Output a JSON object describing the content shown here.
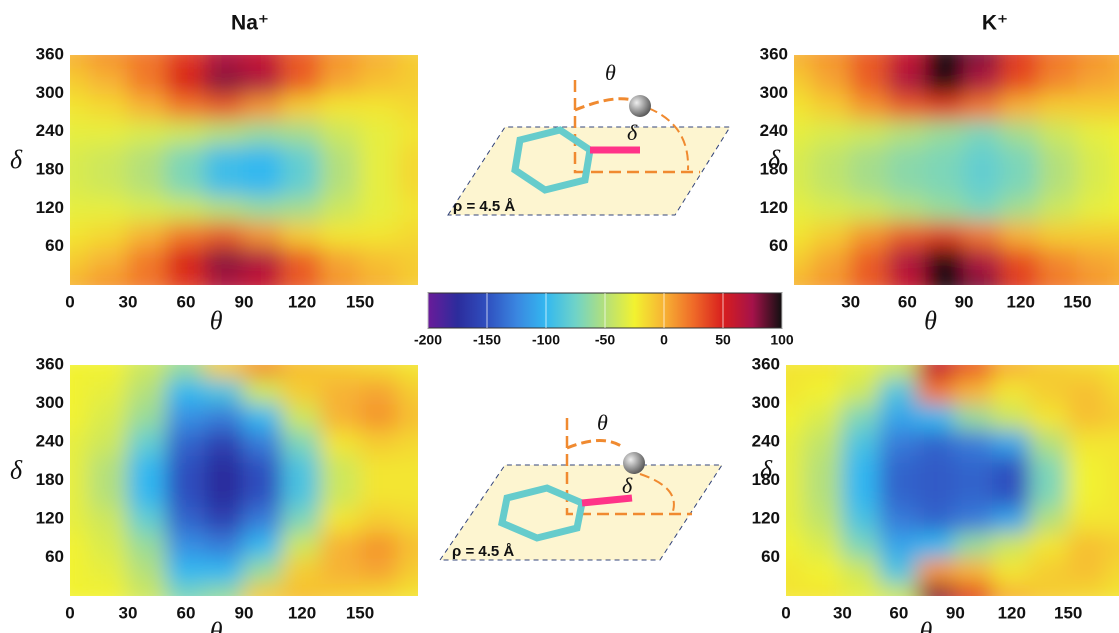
{
  "chart_data": [
    {
      "type": "heatmap",
      "title": "Na⁺",
      "xlabel": "θ",
      "ylabel": "δ",
      "x": [
        0,
        20,
        40,
        60,
        80,
        100,
        120,
        140,
        160,
        180
      ],
      "y": [
        0,
        40,
        80,
        120,
        160,
        200,
        240,
        280,
        320,
        360
      ],
      "z": [
        [
          0,
          10,
          20,
          40,
          70,
          60,
          30,
          10,
          0,
          -10
        ],
        [
          -10,
          0,
          20,
          50,
          80,
          70,
          30,
          5,
          -5,
          -10
        ],
        [
          -20,
          -15,
          0,
          20,
          30,
          10,
          -10,
          -20,
          -20,
          -15
        ],
        [
          -30,
          -30,
          -35,
          -40,
          -50,
          -60,
          -55,
          -40,
          -30,
          -20
        ],
        [
          -35,
          -40,
          -50,
          -70,
          -95,
          -100,
          -80,
          -50,
          -30,
          -15
        ],
        [
          -35,
          -40,
          -50,
          -70,
          -95,
          -100,
          -80,
          -50,
          -30,
          -15
        ],
        [
          -30,
          -30,
          -35,
          -40,
          -50,
          -60,
          -55,
          -40,
          -30,
          -20
        ],
        [
          -20,
          -15,
          0,
          20,
          30,
          10,
          -10,
          -20,
          -20,
          -15
        ],
        [
          -10,
          0,
          20,
          50,
          80,
          70,
          30,
          5,
          -5,
          -10
        ],
        [
          0,
          10,
          20,
          40,
          70,
          60,
          30,
          10,
          0,
          -10
        ]
      ],
      "xlim": [
        0,
        180
      ],
      "ylim": [
        0,
        360
      ],
      "xticks": [
        0,
        30,
        60,
        90,
        120,
        150
      ],
      "yticks": [
        60,
        120,
        180,
        240,
        300,
        360
      ]
    },
    {
      "type": "heatmap",
      "title": "K⁺",
      "xlabel": "θ",
      "ylabel": "δ",
      "x": [
        0,
        20,
        40,
        60,
        80,
        100,
        120,
        140,
        160,
        180
      ],
      "y": [
        0,
        40,
        80,
        120,
        160,
        200,
        240,
        280,
        320,
        360
      ],
      "z": [
        [
          0,
          10,
          30,
          60,
          100,
          80,
          40,
          20,
          10,
          0
        ],
        [
          -10,
          5,
          30,
          70,
          100,
          70,
          35,
          15,
          5,
          0
        ],
        [
          -20,
          -10,
          10,
          30,
          40,
          20,
          0,
          -10,
          -10,
          -10
        ],
        [
          -30,
          -35,
          -40,
          -50,
          -60,
          -70,
          -55,
          -40,
          -30,
          -25
        ],
        [
          -35,
          -45,
          -55,
          -65,
          -70,
          -80,
          -70,
          -50,
          -35,
          -25
        ],
        [
          -35,
          -45,
          -55,
          -65,
          -70,
          -80,
          -70,
          -50,
          -35,
          -25
        ],
        [
          -30,
          -35,
          -40,
          -50,
          -60,
          -70,
          -55,
          -40,
          -30,
          -25
        ],
        [
          -20,
          -10,
          10,
          30,
          40,
          20,
          0,
          -10,
          -10,
          -10
        ],
        [
          -10,
          5,
          30,
          70,
          100,
          70,
          35,
          15,
          5,
          0
        ],
        [
          0,
          10,
          30,
          60,
          100,
          80,
          40,
          20,
          10,
          0
        ]
      ],
      "xlim": [
        0,
        172
      ],
      "ylim": [
        0,
        360
      ],
      "xticks": [
        30,
        60,
        90,
        120,
        150
      ],
      "yticks": [
        60,
        120,
        180,
        240,
        300,
        360
      ]
    },
    {
      "type": "heatmap",
      "xlabel": "θ",
      "ylabel": "δ",
      "x": [
        0,
        20,
        40,
        60,
        80,
        100,
        120,
        140,
        160,
        180
      ],
      "y": [
        0,
        40,
        80,
        120,
        160,
        200,
        240,
        280,
        320,
        360
      ],
      "z": [
        [
          -25,
          -25,
          -40,
          -70,
          -60,
          -10,
          -5,
          -10,
          -15,
          -20
        ],
        [
          -25,
          -30,
          -50,
          -100,
          -100,
          -60,
          -10,
          0,
          5,
          -10
        ],
        [
          -25,
          -35,
          -60,
          -120,
          -130,
          -100,
          -40,
          0,
          10,
          -5
        ],
        [
          -30,
          -40,
          -80,
          -140,
          -160,
          -130,
          -70,
          -20,
          -10,
          -15
        ],
        [
          -30,
          -50,
          -100,
          -150,
          -175,
          -150,
          -90,
          -40,
          -20,
          -20
        ],
        [
          -30,
          -50,
          -100,
          -150,
          -175,
          -150,
          -90,
          -40,
          -20,
          -20
        ],
        [
          -30,
          -40,
          -80,
          -140,
          -160,
          -130,
          -70,
          -20,
          -10,
          -15
        ],
        [
          -25,
          -35,
          -60,
          -120,
          -130,
          -100,
          -40,
          0,
          10,
          -5
        ],
        [
          -25,
          -30,
          -50,
          -100,
          -90,
          -40,
          -10,
          0,
          5,
          -10
        ],
        [
          -25,
          -25,
          -40,
          -60,
          -10,
          10,
          -5,
          -10,
          -15,
          -20
        ]
      ],
      "xlim": [
        0,
        180
      ],
      "ylim": [
        0,
        360
      ],
      "xticks": [
        0,
        30,
        60,
        90,
        120,
        150
      ],
      "yticks": [
        60,
        120,
        180,
        240,
        300,
        360
      ]
    },
    {
      "type": "heatmap",
      "xlabel": "θ",
      "ylabel": "δ",
      "x": [
        0,
        20,
        40,
        60,
        80,
        100,
        120,
        140,
        160,
        180
      ],
      "y": [
        0,
        40,
        80,
        120,
        160,
        200,
        240,
        280,
        320,
        360
      ],
      "z": [
        [
          -20,
          -20,
          -30,
          -40,
          80,
          40,
          0,
          -10,
          -15,
          -20
        ],
        [
          -20,
          -25,
          -40,
          -90,
          10,
          0,
          -20,
          -10,
          -5,
          -15
        ],
        [
          -25,
          -35,
          -70,
          -110,
          -100,
          -60,
          -40,
          -20,
          -5,
          -10
        ],
        [
          -30,
          -45,
          -90,
          -130,
          -140,
          -130,
          -110,
          -50,
          -20,
          -20
        ],
        [
          -30,
          -50,
          -100,
          -140,
          -145,
          -140,
          -150,
          -70,
          -25,
          -20
        ],
        [
          -30,
          -50,
          -100,
          -140,
          -145,
          -140,
          -150,
          -70,
          -25,
          -20
        ],
        [
          -30,
          -45,
          -90,
          -130,
          -140,
          -130,
          -110,
          -50,
          -20,
          -20
        ],
        [
          -25,
          -35,
          -70,
          -110,
          -100,
          -60,
          -40,
          -20,
          -5,
          -10
        ],
        [
          -20,
          -25,
          -40,
          -90,
          20,
          0,
          -20,
          -10,
          -5,
          -15
        ],
        [
          -20,
          -20,
          -30,
          -40,
          60,
          30,
          0,
          -10,
          -15,
          -20
        ]
      ],
      "xlim": [
        0,
        177
      ],
      "ylim": [
        0,
        360
      ],
      "xticks": [
        0,
        30,
        60,
        90,
        120,
        150
      ],
      "yticks": [
        60,
        120,
        180,
        240,
        300,
        360
      ]
    }
  ],
  "colorbar": {
    "lim": [
      -200,
      100
    ],
    "ticks": [
      -200,
      -150,
      -100,
      -50,
      0,
      50,
      100
    ],
    "colors": [
      "#6a1b9a",
      "#2c2c9c",
      "#2f4fbf",
      "#3a86e0",
      "#33b8f0",
      "#6fd3c8",
      "#b4e07a",
      "#f2f230",
      "#f7b234",
      "#ef6a28",
      "#d81e1e",
      "#a5124a",
      "#101010"
    ]
  },
  "diagrams": [
    {
      "theta": "θ",
      "delta": "δ",
      "rho": "ρ = 4.5 Å"
    },
    {
      "theta": "θ",
      "delta": "δ",
      "rho": "ρ = 4.5 Å"
    }
  ]
}
